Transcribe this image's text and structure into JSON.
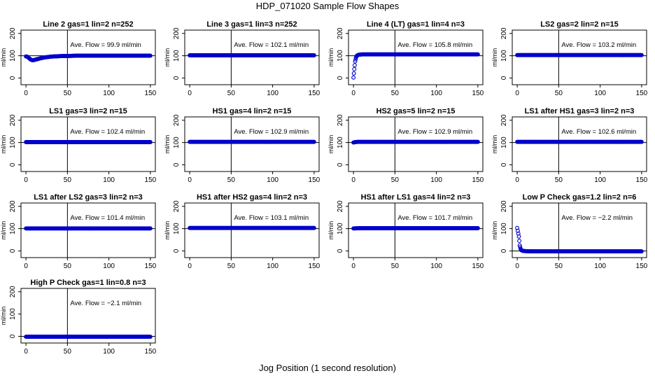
{
  "figure": {
    "title": "HDP_071020  Sample Flow Shapes",
    "xlabel": "Jog Position (1 second resolution)"
  },
  "colors": {
    "points": "#0000cc",
    "axis": "#000000",
    "background": "#ffffff"
  },
  "chart_data": [
    {
      "type": "scatter",
      "title": "Line 2 gas=1 lin=2 n=252",
      "ylabel": "ml/min",
      "annotation": "Ave. Flow =  99.9  ml/min",
      "xlim": [
        0,
        150
      ],
      "ylim": [
        0,
        200
      ],
      "xticks": [
        0,
        50,
        100,
        150
      ],
      "yticks": [
        0,
        100,
        200
      ],
      "vline": 50,
      "hline": 100,
      "points": [
        [
          0,
          97
        ],
        [
          2,
          95
        ],
        [
          4,
          88
        ],
        [
          6,
          82
        ],
        [
          8,
          80
        ],
        [
          10,
          81
        ],
        [
          12,
          83
        ],
        [
          15,
          86
        ],
        [
          18,
          89
        ],
        [
          22,
          92
        ],
        [
          26,
          94
        ],
        [
          30,
          96
        ],
        [
          35,
          97
        ],
        [
          40,
          98
        ],
        [
          50,
          99
        ],
        [
          60,
          100
        ],
        [
          70,
          100
        ],
        [
          80,
          100
        ],
        [
          90,
          100
        ],
        [
          100,
          100
        ],
        [
          110,
          100
        ],
        [
          120,
          100
        ],
        [
          130,
          100
        ],
        [
          140,
          100
        ],
        [
          150,
          100
        ]
      ]
    },
    {
      "type": "scatter",
      "title": "Line 3 gas=1 lin=3 n=252",
      "ylabel": "ml/min",
      "annotation": "Ave. Flow =  102.1  ml/min",
      "xlim": [
        0,
        150
      ],
      "ylim": [
        0,
        200
      ],
      "xticks": [
        0,
        50,
        100,
        150
      ],
      "yticks": [
        0,
        100,
        200
      ],
      "vline": 50,
      "hline": 100,
      "points": [
        [
          0,
          102
        ],
        [
          10,
          102
        ],
        [
          20,
          102
        ],
        [
          30,
          102
        ],
        [
          40,
          102
        ],
        [
          50,
          102
        ],
        [
          60,
          102
        ],
        [
          70,
          102
        ],
        [
          80,
          102
        ],
        [
          90,
          102
        ],
        [
          100,
          102
        ],
        [
          110,
          102
        ],
        [
          120,
          102
        ],
        [
          130,
          102
        ],
        [
          140,
          102
        ],
        [
          150,
          102
        ]
      ]
    },
    {
      "type": "scatter",
      "title": "Line 4 (LT) gas=1 lin=4 n=3",
      "ylabel": "ml/min",
      "annotation": "Ave. Flow =  105.8  ml/min",
      "xlim": [
        0,
        150
      ],
      "ylim": [
        0,
        200
      ],
      "xticks": [
        0,
        50,
        100,
        150
      ],
      "yticks": [
        0,
        100,
        200
      ],
      "vline": 50,
      "hline": 100,
      "points": [
        [
          0,
          2
        ],
        [
          1,
          40
        ],
        [
          2,
          75
        ],
        [
          3,
          92
        ],
        [
          4,
          100
        ],
        [
          6,
          104
        ],
        [
          10,
          106
        ],
        [
          20,
          106
        ],
        [
          30,
          106
        ],
        [
          40,
          106
        ],
        [
          50,
          106
        ],
        [
          60,
          106
        ],
        [
          70,
          106
        ],
        [
          80,
          106
        ],
        [
          90,
          106
        ],
        [
          100,
          106
        ],
        [
          110,
          106
        ],
        [
          120,
          106
        ],
        [
          130,
          106
        ],
        [
          140,
          106
        ],
        [
          150,
          106
        ]
      ]
    },
    {
      "type": "scatter",
      "title": "LS2 gas=2 lin=2 n=15",
      "ylabel": "ml/min",
      "annotation": "Ave. Flow =  103.2  ml/min",
      "xlim": [
        0,
        150
      ],
      "ylim": [
        0,
        200
      ],
      "xticks": [
        0,
        50,
        100,
        150
      ],
      "yticks": [
        0,
        100,
        200
      ],
      "vline": 50,
      "hline": 100,
      "points": [
        [
          0,
          103
        ],
        [
          10,
          103
        ],
        [
          20,
          103
        ],
        [
          30,
          103
        ],
        [
          40,
          103
        ],
        [
          50,
          103
        ],
        [
          60,
          103
        ],
        [
          70,
          103
        ],
        [
          80,
          103
        ],
        [
          90,
          103
        ],
        [
          100,
          103
        ],
        [
          110,
          103
        ],
        [
          120,
          103
        ],
        [
          130,
          103
        ],
        [
          140,
          103
        ],
        [
          150,
          103
        ]
      ]
    },
    {
      "type": "scatter",
      "title": "LS1 gas=3 lin=2 n=15",
      "ylabel": "ml/min",
      "annotation": "Ave. Flow =  102.4  ml/min",
      "xlim": [
        0,
        150
      ],
      "ylim": [
        0,
        200
      ],
      "xticks": [
        0,
        50,
        100,
        150
      ],
      "yticks": [
        0,
        100,
        200
      ],
      "vline": 50,
      "hline": 100,
      "points": [
        [
          0,
          102
        ],
        [
          10,
          102
        ],
        [
          20,
          102
        ],
        [
          30,
          102
        ],
        [
          40,
          102
        ],
        [
          50,
          102
        ],
        [
          60,
          102
        ],
        [
          70,
          102
        ],
        [
          80,
          102
        ],
        [
          90,
          102
        ],
        [
          100,
          102
        ],
        [
          110,
          102
        ],
        [
          120,
          102
        ],
        [
          130,
          102
        ],
        [
          140,
          102
        ],
        [
          150,
          102
        ]
      ]
    },
    {
      "type": "scatter",
      "title": "HS1 gas=4 lin=2 n=15",
      "ylabel": "ml/min",
      "annotation": "Ave. Flow =  102.9  ml/min",
      "xlim": [
        0,
        150
      ],
      "ylim": [
        0,
        200
      ],
      "xticks": [
        0,
        50,
        100,
        150
      ],
      "yticks": [
        0,
        100,
        200
      ],
      "vline": 50,
      "hline": 100,
      "points": [
        [
          0,
          103
        ],
        [
          10,
          103
        ],
        [
          20,
          103
        ],
        [
          30,
          103
        ],
        [
          40,
          103
        ],
        [
          50,
          103
        ],
        [
          60,
          103
        ],
        [
          70,
          103
        ],
        [
          80,
          103
        ],
        [
          90,
          103
        ],
        [
          100,
          103
        ],
        [
          110,
          103
        ],
        [
          120,
          103
        ],
        [
          130,
          103
        ],
        [
          140,
          103
        ],
        [
          150,
          103
        ]
      ]
    },
    {
      "type": "scatter",
      "title": "HS2 gas=5 lin=2 n=15",
      "ylabel": "ml/min",
      "annotation": "Ave. Flow =  102.9  ml/min",
      "xlim": [
        0,
        150
      ],
      "ylim": [
        0,
        200
      ],
      "xticks": [
        0,
        50,
        100,
        150
      ],
      "yticks": [
        0,
        100,
        200
      ],
      "vline": 50,
      "hline": 100,
      "points": [
        [
          0,
          100
        ],
        [
          2,
          102
        ],
        [
          5,
          103
        ],
        [
          10,
          103
        ],
        [
          20,
          103
        ],
        [
          30,
          103
        ],
        [
          40,
          103
        ],
        [
          50,
          103
        ],
        [
          60,
          103
        ],
        [
          70,
          103
        ],
        [
          80,
          103
        ],
        [
          90,
          103
        ],
        [
          100,
          103
        ],
        [
          110,
          103
        ],
        [
          120,
          103
        ],
        [
          130,
          103
        ],
        [
          140,
          103
        ],
        [
          150,
          103
        ]
      ]
    },
    {
      "type": "scatter",
      "title": "LS1 after HS1 gas=3 lin=2 n=3",
      "ylabel": "ml/min",
      "annotation": "Ave. Flow =  102.6  ml/min",
      "xlim": [
        0,
        150
      ],
      "ylim": [
        0,
        200
      ],
      "xticks": [
        0,
        50,
        100,
        150
      ],
      "yticks": [
        0,
        100,
        200
      ],
      "vline": 50,
      "hline": 100,
      "points": [
        [
          0,
          103
        ],
        [
          10,
          103
        ],
        [
          20,
          103
        ],
        [
          30,
          103
        ],
        [
          40,
          103
        ],
        [
          50,
          103
        ],
        [
          60,
          103
        ],
        [
          70,
          103
        ],
        [
          80,
          103
        ],
        [
          90,
          103
        ],
        [
          100,
          103
        ],
        [
          110,
          103
        ],
        [
          120,
          103
        ],
        [
          130,
          103
        ],
        [
          140,
          103
        ],
        [
          150,
          103
        ]
      ]
    },
    {
      "type": "scatter",
      "title": "LS1 after LS2 gas=3 lin=2 n=3",
      "ylabel": "ml/min",
      "annotation": "Ave. Flow =  101.4  ml/min",
      "xlim": [
        0,
        150
      ],
      "ylim": [
        0,
        200
      ],
      "xticks": [
        0,
        50,
        100,
        150
      ],
      "yticks": [
        0,
        100,
        200
      ],
      "vline": 50,
      "hline": 100,
      "points": [
        [
          0,
          101
        ],
        [
          10,
          101
        ],
        [
          20,
          101
        ],
        [
          30,
          101
        ],
        [
          40,
          101
        ],
        [
          50,
          101
        ],
        [
          60,
          101
        ],
        [
          70,
          101
        ],
        [
          80,
          101
        ],
        [
          90,
          101
        ],
        [
          100,
          101
        ],
        [
          110,
          101
        ],
        [
          120,
          101
        ],
        [
          130,
          101
        ],
        [
          140,
          101
        ],
        [
          150,
          101
        ]
      ]
    },
    {
      "type": "scatter",
      "title": "HS1 after HS2 gas=4 lin=2 n=3",
      "ylabel": "ml/min",
      "annotation": "Ave. Flow =  103.1  ml/min",
      "xlim": [
        0,
        150
      ],
      "ylim": [
        0,
        200
      ],
      "xticks": [
        0,
        50,
        100,
        150
      ],
      "yticks": [
        0,
        100,
        200
      ],
      "vline": 50,
      "hline": 100,
      "points": [
        [
          0,
          103
        ],
        [
          10,
          103
        ],
        [
          20,
          103
        ],
        [
          30,
          103
        ],
        [
          40,
          103
        ],
        [
          50,
          103
        ],
        [
          60,
          103
        ],
        [
          70,
          103
        ],
        [
          80,
          103
        ],
        [
          90,
          103
        ],
        [
          100,
          103
        ],
        [
          110,
          103
        ],
        [
          120,
          103
        ],
        [
          130,
          103
        ],
        [
          140,
          103
        ],
        [
          150,
          103
        ]
      ]
    },
    {
      "type": "scatter",
      "title": "HS1 after LS1 gas=4 lin=2 n=3",
      "ylabel": "ml/min",
      "annotation": "Ave. Flow =  101.7  ml/min",
      "xlim": [
        0,
        150
      ],
      "ylim": [
        0,
        200
      ],
      "xticks": [
        0,
        50,
        100,
        150
      ],
      "yticks": [
        0,
        100,
        200
      ],
      "vline": 50,
      "hline": 100,
      "points": [
        [
          0,
          101
        ],
        [
          10,
          102
        ],
        [
          20,
          102
        ],
        [
          30,
          102
        ],
        [
          40,
          102
        ],
        [
          50,
          102
        ],
        [
          60,
          102
        ],
        [
          70,
          102
        ],
        [
          80,
          102
        ],
        [
          90,
          102
        ],
        [
          100,
          102
        ],
        [
          110,
          102
        ],
        [
          120,
          102
        ],
        [
          130,
          102
        ],
        [
          140,
          102
        ],
        [
          150,
          102
        ]
      ]
    },
    {
      "type": "scatter",
      "title": "Low P Check gas=1.2 lin=2 n=6",
      "ylabel": "ml/min",
      "annotation": "Ave. Flow =  −2.2  ml/min",
      "xlim": [
        0,
        150
      ],
      "ylim": [
        0,
        200
      ],
      "xticks": [
        0,
        50,
        100,
        150
      ],
      "yticks": [
        0,
        100,
        200
      ],
      "vline": 50,
      "hline": 0,
      "points": [
        [
          0,
          103
        ],
        [
          2,
          65
        ],
        [
          3,
          25
        ],
        [
          4,
          10
        ],
        [
          5,
          3
        ],
        [
          7,
          0
        ],
        [
          10,
          -1
        ],
        [
          20,
          -2
        ],
        [
          30,
          -2
        ],
        [
          40,
          -2
        ],
        [
          50,
          -2
        ],
        [
          60,
          -2
        ],
        [
          70,
          -2
        ],
        [
          80,
          -2
        ],
        [
          90,
          -2
        ],
        [
          100,
          -2
        ],
        [
          110,
          -2
        ],
        [
          120,
          -2
        ],
        [
          130,
          -2
        ],
        [
          140,
          -2
        ],
        [
          150,
          -2
        ]
      ]
    },
    {
      "type": "scatter",
      "title": "High P Check gas=1 lin=0.8 n=3",
      "ylabel": "ml/min",
      "annotation": "Ave. Flow =  −2.1  ml/min",
      "xlim": [
        0,
        150
      ],
      "ylim": [
        0,
        200
      ],
      "xticks": [
        0,
        50,
        100,
        150
      ],
      "yticks": [
        0,
        100,
        200
      ],
      "vline": 50,
      "hline": 0,
      "points": [
        [
          0,
          -2
        ],
        [
          10,
          -2
        ],
        [
          20,
          -2
        ],
        [
          30,
          -2
        ],
        [
          40,
          -2
        ],
        [
          50,
          -2
        ],
        [
          60,
          -2
        ],
        [
          70,
          -2
        ],
        [
          80,
          -2
        ],
        [
          90,
          -2
        ],
        [
          100,
          -2
        ],
        [
          110,
          -2
        ],
        [
          120,
          -2
        ],
        [
          130,
          -2
        ],
        [
          140,
          -2
        ],
        [
          150,
          -2
        ]
      ]
    }
  ]
}
